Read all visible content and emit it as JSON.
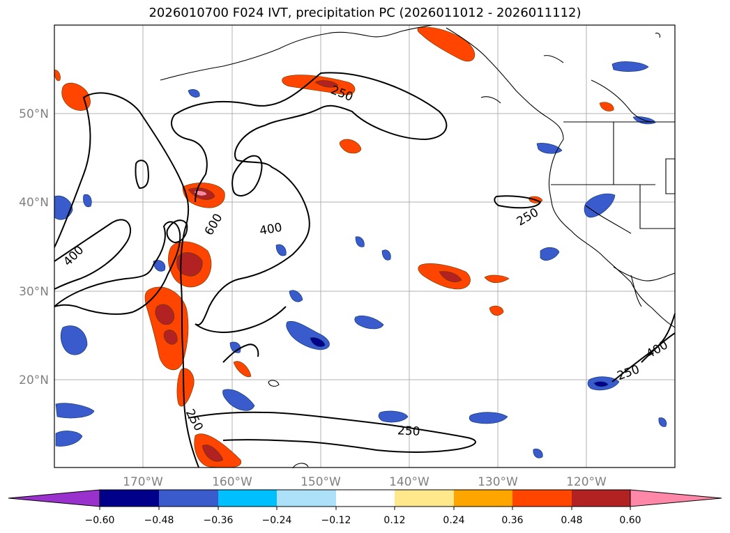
{
  "title": "2026010700 F024 IVT, precipitation PC (2026011012 - 2026011112)",
  "map": {
    "lon_labels": [
      "170°W",
      "160°W",
      "150°W",
      "140°W",
      "130°W",
      "120°W"
    ],
    "lat_labels": [
      "50°N",
      "40°N",
      "30°N",
      "20°N"
    ],
    "contour_levels": [
      250,
      400,
      600
    ],
    "contour_labels": [
      "250",
      "250",
      "250",
      "250",
      "250",
      "400",
      "400",
      "400",
      "600"
    ]
  },
  "colorbar": {
    "ticks": [
      "−0.60",
      "−0.48",
      "−0.36",
      "−0.24",
      "−0.12",
      "0.12",
      "0.24",
      "0.36",
      "0.48",
      "0.60"
    ],
    "colors": [
      "#9932CC",
      "#00008B",
      "#3A5BCC",
      "#00BFFF",
      "#ADE1FA",
      "#FFFFFF",
      "#FFE88C",
      "#FFA500",
      "#FF4500",
      "#B22222",
      "#FF88A8"
    ]
  }
}
